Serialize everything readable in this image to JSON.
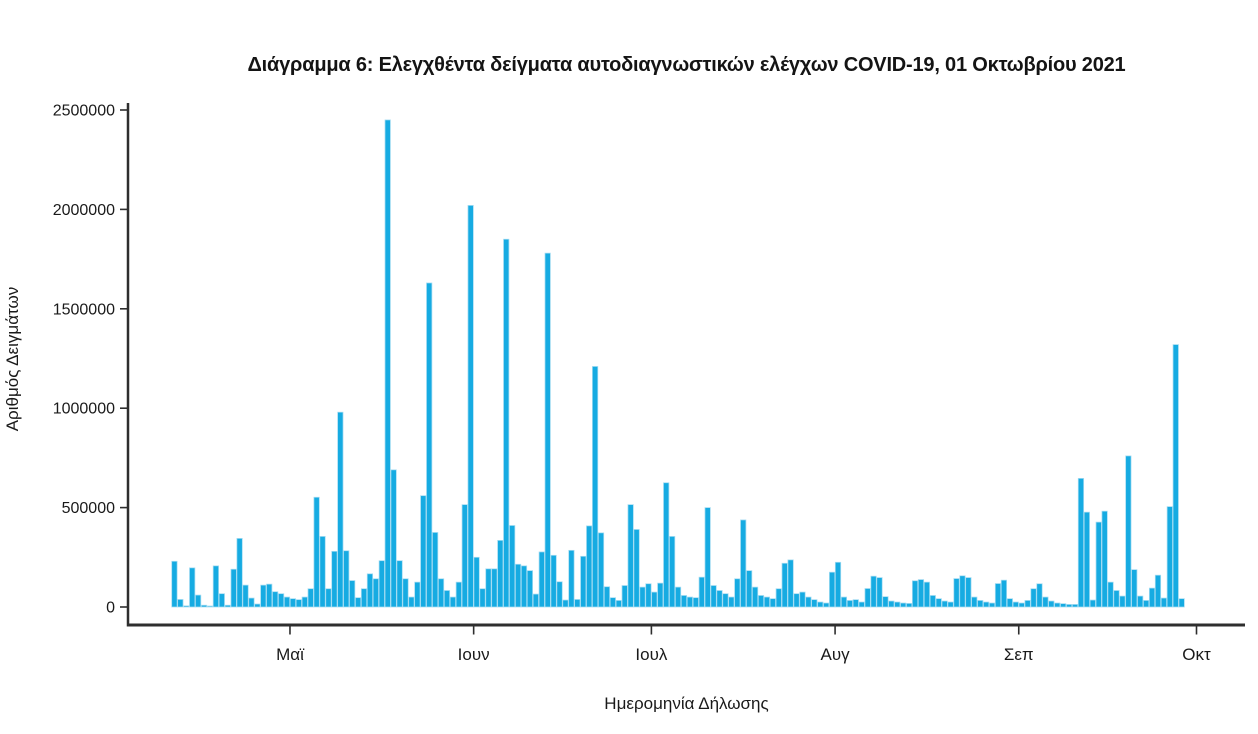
{
  "figure": {
    "title": "Διάγραμμα 6: Ελεγχθέντα δείγματα αυτοδιαγνωστικών ελέγχων COVID-19, 01 Οκτωβρίου 2021"
  },
  "chart_data": {
    "type": "bar",
    "title": "Διάγραμμα 6: Ελεγχθέντα δείγματα αυτοδιαγνωστικών ελέγχων COVID-19, 01 Οκτωβρίου 2021",
    "xlabel": "Ημερομηνία Δήλωσης",
    "ylabel": "Αριθμός Δειγμάτων",
    "ylim": [
      0,
      2500000
    ],
    "yticks": [
      0,
      500000,
      1000000,
      1500000,
      2000000,
      2500000
    ],
    "ytick_labels": [
      "0",
      "500000",
      "1000000",
      "1500000",
      "2000000",
      "2500000"
    ],
    "x_ticks": [
      {
        "label": "Μαϊ",
        "date": "2021-05-01"
      },
      {
        "label": "Ιουν",
        "date": "2021-06-01"
      },
      {
        "label": "Ιουλ",
        "date": "2021-07-01"
      },
      {
        "label": "Αυγ",
        "date": "2021-08-01"
      },
      {
        "label": "Σεπ",
        "date": "2021-09-01"
      },
      {
        "label": "Οκτ",
        "date": "2021-10-01"
      }
    ],
    "x_range": [
      "2021-04-04",
      "2021-10-09"
    ],
    "grid": false,
    "legend": false,
    "bar_color": "#16ABE2",
    "bar_edge_color": "#A5DCF2",
    "axis_color": "#2e2e2e",
    "text_color": "#1a1a1a",
    "series": [
      {
        "name": "Ελεγχθέντα δείγματα αυτοδιαγνωστικών ελέγχων",
        "start_date": "2021-04-11",
        "frequency": "daily",
        "values": [
          230000,
          38000,
          6000,
          197000,
          60000,
          9000,
          3000,
          207000,
          67000,
          9000,
          190000,
          345000,
          110000,
          45000,
          15000,
          110000,
          115000,
          77000,
          67000,
          50000,
          42000,
          37000,
          50000,
          92000,
          552000,
          355000,
          92000,
          280000,
          980000,
          283000,
          133000,
          47000,
          92000,
          167000,
          142000,
          233000,
          2450000,
          690000,
          233000,
          142000,
          50000,
          125000,
          560000,
          1630000,
          375000,
          142000,
          83000,
          50000,
          125000,
          515000,
          2020000,
          250000,
          92000,
          192000,
          192000,
          335000,
          1850000,
          410000,
          215000,
          207000,
          183000,
          65000,
          277000,
          1780000,
          260000,
          127000,
          35000,
          285000,
          38000,
          255000,
          408000,
          1210000,
          373000,
          102000,
          47000,
          33000,
          108000,
          515000,
          390000,
          100000,
          117000,
          75000,
          120000,
          625000,
          355000,
          100000,
          58000,
          50000,
          47000,
          150000,
          500000,
          108000,
          83000,
          67000,
          50000,
          142000,
          438000,
          183000,
          100000,
          58000,
          50000,
          42000,
          92000,
          220000,
          237000,
          67000,
          75000,
          50000,
          37000,
          25000,
          20000,
          175000,
          225000,
          50000,
          33000,
          37000,
          25000,
          93000,
          155000,
          148000,
          52000,
          30000,
          25000,
          20000,
          18000,
          132000,
          138000,
          125000,
          58000,
          42000,
          30000,
          25000,
          143000,
          157000,
          148000,
          50000,
          33000,
          25000,
          20000,
          118000,
          135000,
          42000,
          25000,
          20000,
          33000,
          92000,
          117000,
          50000,
          30000,
          20000,
          17000,
          13000,
          13000,
          647000,
          477000,
          35000,
          427000,
          482000,
          125000,
          83000,
          55000,
          760000,
          188000,
          55000,
          33000,
          95000,
          160000,
          45000,
          505000,
          1320000,
          42000
        ]
      }
    ]
  }
}
